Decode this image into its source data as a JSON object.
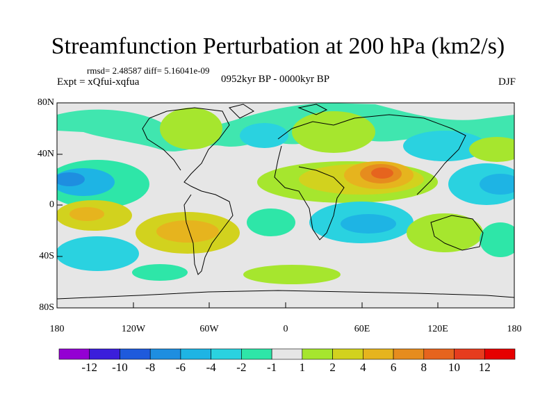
{
  "title": "Streamfunction Perturbation at 200 hPa (km2/s)",
  "stats": "rmsd= 2.48587 diff= 5.16041e-09",
  "experiment": "Expt = xQfui-xqfua",
  "period": "0952kyr BP - 0000kyr BP",
  "season": "DJF",
  "lat_labels": [
    "80N",
    "40N",
    "0",
    "40S",
    "80S"
  ],
  "lon_labels": [
    "180",
    "120W",
    "60W",
    "0",
    "60E",
    "120E",
    "180"
  ],
  "colorbar": {
    "labels": [
      "-12",
      "-10",
      "-8",
      "-6",
      "-4",
      "-2",
      "-1",
      "1",
      "2",
      "4",
      "6",
      "8",
      "10",
      "12"
    ],
    "colors": [
      "#9400d3",
      "#3b1edb",
      "#1e5adc",
      "#1e8ee0",
      "#1eb4e4",
      "#2ad2e0",
      "#2ee6a8",
      "#e6e6e6",
      "#a6e62e",
      "#d2d21e",
      "#e6b41e",
      "#e68c1e",
      "#e6641e",
      "#e63c1e",
      "#e60000"
    ]
  }
}
